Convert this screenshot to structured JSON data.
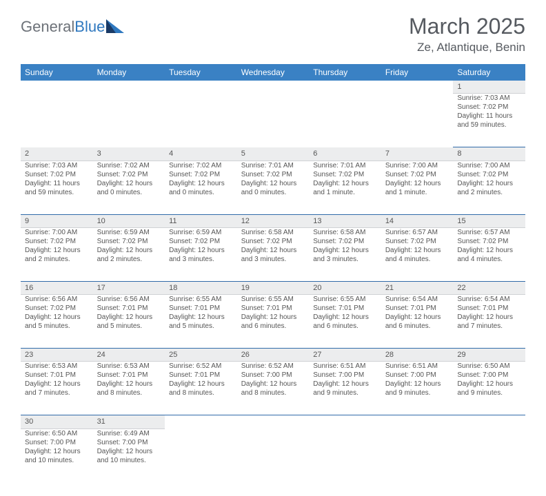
{
  "logo": {
    "part1": "General",
    "part2": "Blue"
  },
  "title": "March 2025",
  "location": "Ze, Atlantique, Benin",
  "colors": {
    "header_bg": "#3a81c4",
    "header_text": "#ffffff",
    "daynum_bg": "#ecedee",
    "cell_divider": "#2f6aa8",
    "title_color": "#565a60",
    "logo_gray": "#6c7178",
    "logo_blue": "#2f78bf",
    "shape_dark": "#1a3a66",
    "shape_light": "#2f78bf"
  },
  "day_headers": [
    "Sunday",
    "Monday",
    "Tuesday",
    "Wednesday",
    "Thursday",
    "Friday",
    "Saturday"
  ],
  "weeks": [
    {
      "nums": [
        "",
        "",
        "",
        "",
        "",
        "",
        "1"
      ],
      "cells": [
        null,
        null,
        null,
        null,
        null,
        null,
        {
          "sunrise": "Sunrise: 7:03 AM",
          "sunset": "Sunset: 7:02 PM",
          "day1": "Daylight: 11 hours",
          "day2": "and 59 minutes."
        }
      ]
    },
    {
      "nums": [
        "2",
        "3",
        "4",
        "5",
        "6",
        "7",
        "8"
      ],
      "cells": [
        {
          "sunrise": "Sunrise: 7:03 AM",
          "sunset": "Sunset: 7:02 PM",
          "day1": "Daylight: 11 hours",
          "day2": "and 59 minutes."
        },
        {
          "sunrise": "Sunrise: 7:02 AM",
          "sunset": "Sunset: 7:02 PM",
          "day1": "Daylight: 12 hours",
          "day2": "and 0 minutes."
        },
        {
          "sunrise": "Sunrise: 7:02 AM",
          "sunset": "Sunset: 7:02 PM",
          "day1": "Daylight: 12 hours",
          "day2": "and 0 minutes."
        },
        {
          "sunrise": "Sunrise: 7:01 AM",
          "sunset": "Sunset: 7:02 PM",
          "day1": "Daylight: 12 hours",
          "day2": "and 0 minutes."
        },
        {
          "sunrise": "Sunrise: 7:01 AM",
          "sunset": "Sunset: 7:02 PM",
          "day1": "Daylight: 12 hours",
          "day2": "and 1 minute."
        },
        {
          "sunrise": "Sunrise: 7:00 AM",
          "sunset": "Sunset: 7:02 PM",
          "day1": "Daylight: 12 hours",
          "day2": "and 1 minute."
        },
        {
          "sunrise": "Sunrise: 7:00 AM",
          "sunset": "Sunset: 7:02 PM",
          "day1": "Daylight: 12 hours",
          "day2": "and 2 minutes."
        }
      ]
    },
    {
      "nums": [
        "9",
        "10",
        "11",
        "12",
        "13",
        "14",
        "15"
      ],
      "cells": [
        {
          "sunrise": "Sunrise: 7:00 AM",
          "sunset": "Sunset: 7:02 PM",
          "day1": "Daylight: 12 hours",
          "day2": "and 2 minutes."
        },
        {
          "sunrise": "Sunrise: 6:59 AM",
          "sunset": "Sunset: 7:02 PM",
          "day1": "Daylight: 12 hours",
          "day2": "and 2 minutes."
        },
        {
          "sunrise": "Sunrise: 6:59 AM",
          "sunset": "Sunset: 7:02 PM",
          "day1": "Daylight: 12 hours",
          "day2": "and 3 minutes."
        },
        {
          "sunrise": "Sunrise: 6:58 AM",
          "sunset": "Sunset: 7:02 PM",
          "day1": "Daylight: 12 hours",
          "day2": "and 3 minutes."
        },
        {
          "sunrise": "Sunrise: 6:58 AM",
          "sunset": "Sunset: 7:02 PM",
          "day1": "Daylight: 12 hours",
          "day2": "and 3 minutes."
        },
        {
          "sunrise": "Sunrise: 6:57 AM",
          "sunset": "Sunset: 7:02 PM",
          "day1": "Daylight: 12 hours",
          "day2": "and 4 minutes."
        },
        {
          "sunrise": "Sunrise: 6:57 AM",
          "sunset": "Sunset: 7:02 PM",
          "day1": "Daylight: 12 hours",
          "day2": "and 4 minutes."
        }
      ]
    },
    {
      "nums": [
        "16",
        "17",
        "18",
        "19",
        "20",
        "21",
        "22"
      ],
      "cells": [
        {
          "sunrise": "Sunrise: 6:56 AM",
          "sunset": "Sunset: 7:02 PM",
          "day1": "Daylight: 12 hours",
          "day2": "and 5 minutes."
        },
        {
          "sunrise": "Sunrise: 6:56 AM",
          "sunset": "Sunset: 7:01 PM",
          "day1": "Daylight: 12 hours",
          "day2": "and 5 minutes."
        },
        {
          "sunrise": "Sunrise: 6:55 AM",
          "sunset": "Sunset: 7:01 PM",
          "day1": "Daylight: 12 hours",
          "day2": "and 5 minutes."
        },
        {
          "sunrise": "Sunrise: 6:55 AM",
          "sunset": "Sunset: 7:01 PM",
          "day1": "Daylight: 12 hours",
          "day2": "and 6 minutes."
        },
        {
          "sunrise": "Sunrise: 6:55 AM",
          "sunset": "Sunset: 7:01 PM",
          "day1": "Daylight: 12 hours",
          "day2": "and 6 minutes."
        },
        {
          "sunrise": "Sunrise: 6:54 AM",
          "sunset": "Sunset: 7:01 PM",
          "day1": "Daylight: 12 hours",
          "day2": "and 6 minutes."
        },
        {
          "sunrise": "Sunrise: 6:54 AM",
          "sunset": "Sunset: 7:01 PM",
          "day1": "Daylight: 12 hours",
          "day2": "and 7 minutes."
        }
      ]
    },
    {
      "nums": [
        "23",
        "24",
        "25",
        "26",
        "27",
        "28",
        "29"
      ],
      "cells": [
        {
          "sunrise": "Sunrise: 6:53 AM",
          "sunset": "Sunset: 7:01 PM",
          "day1": "Daylight: 12 hours",
          "day2": "and 7 minutes."
        },
        {
          "sunrise": "Sunrise: 6:53 AM",
          "sunset": "Sunset: 7:01 PM",
          "day1": "Daylight: 12 hours",
          "day2": "and 8 minutes."
        },
        {
          "sunrise": "Sunrise: 6:52 AM",
          "sunset": "Sunset: 7:01 PM",
          "day1": "Daylight: 12 hours",
          "day2": "and 8 minutes."
        },
        {
          "sunrise": "Sunrise: 6:52 AM",
          "sunset": "Sunset: 7:00 PM",
          "day1": "Daylight: 12 hours",
          "day2": "and 8 minutes."
        },
        {
          "sunrise": "Sunrise: 6:51 AM",
          "sunset": "Sunset: 7:00 PM",
          "day1": "Daylight: 12 hours",
          "day2": "and 9 minutes."
        },
        {
          "sunrise": "Sunrise: 6:51 AM",
          "sunset": "Sunset: 7:00 PM",
          "day1": "Daylight: 12 hours",
          "day2": "and 9 minutes."
        },
        {
          "sunrise": "Sunrise: 6:50 AM",
          "sunset": "Sunset: 7:00 PM",
          "day1": "Daylight: 12 hours",
          "day2": "and 9 minutes."
        }
      ]
    },
    {
      "nums": [
        "30",
        "31",
        "",
        "",
        "",
        "",
        ""
      ],
      "cells": [
        {
          "sunrise": "Sunrise: 6:50 AM",
          "sunset": "Sunset: 7:00 PM",
          "day1": "Daylight: 12 hours",
          "day2": "and 10 minutes."
        },
        {
          "sunrise": "Sunrise: 6:49 AM",
          "sunset": "Sunset: 7:00 PM",
          "day1": "Daylight: 12 hours",
          "day2": "and 10 minutes."
        },
        null,
        null,
        null,
        null,
        null
      ]
    }
  ]
}
